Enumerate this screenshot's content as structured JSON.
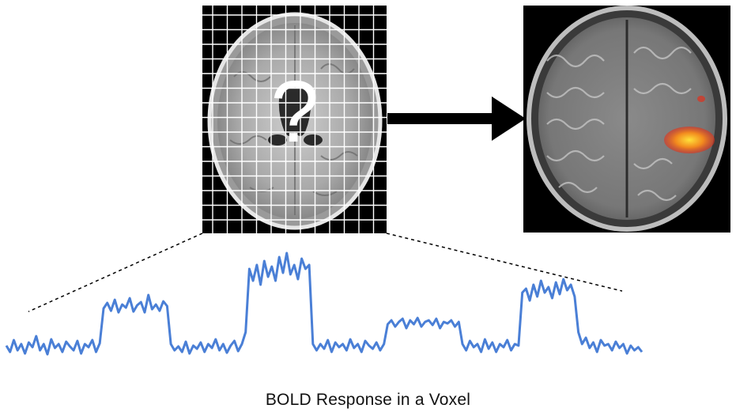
{
  "question_mark": "?",
  "caption": "BOLD Response in a Voxel",
  "colors": {
    "trace": "#4a7fd6",
    "activation_core": "#ffe13a",
    "activation_edge": "#e0301c",
    "grid_lines": "#ffffff"
  },
  "icons": [
    "grid-mri-image",
    "activation-mri-image",
    "right-arrow-icon"
  ],
  "bold_series": [
    0.28,
    0.2,
    0.35,
    0.22,
    0.3,
    0.18,
    0.32,
    0.26,
    0.4,
    0.22,
    0.3,
    0.17,
    0.36,
    0.25,
    0.3,
    0.2,
    0.33,
    0.27,
    0.22,
    0.34,
    0.18,
    0.3,
    0.26,
    0.35,
    0.2,
    0.31,
    0.75,
    0.82,
    0.72,
    0.86,
    0.7,
    0.8,
    0.76,
    0.88,
    0.71,
    0.79,
    0.83,
    0.7,
    0.92,
    0.74,
    0.8,
    0.72,
    0.84,
    0.78,
    0.3,
    0.22,
    0.27,
    0.2,
    0.33,
    0.18,
    0.28,
    0.24,
    0.32,
    0.2,
    0.3,
    0.25,
    0.36,
    0.22,
    0.3,
    0.19,
    0.28,
    0.34,
    0.21,
    0.3,
    0.45,
    1.25,
    1.1,
    1.3,
    1.05,
    1.35,
    1.15,
    1.28,
    1.1,
    1.4,
    1.2,
    1.45,
    1.18,
    1.3,
    1.12,
    1.38,
    1.25,
    1.3,
    0.3,
    0.22,
    0.3,
    0.24,
    0.35,
    0.2,
    0.32,
    0.26,
    0.3,
    0.22,
    0.36,
    0.25,
    0.3,
    0.2,
    0.34,
    0.28,
    0.24,
    0.32,
    0.22,
    0.3,
    0.55,
    0.6,
    0.52,
    0.58,
    0.62,
    0.5,
    0.6,
    0.55,
    0.63,
    0.52,
    0.58,
    0.6,
    0.54,
    0.62,
    0.5,
    0.58,
    0.56,
    0.6,
    0.52,
    0.58,
    0.3,
    0.22,
    0.34,
    0.26,
    0.3,
    0.2,
    0.36,
    0.24,
    0.32,
    0.2,
    0.3,
    0.26,
    0.35,
    0.22,
    0.3,
    0.28,
    0.95,
    1.0,
    0.85,
    1.05,
    0.9,
    1.1,
    0.95,
    1.02,
    0.88,
    1.08,
    0.93,
    1.12,
    0.98,
    1.05,
    0.9,
    0.45,
    0.3,
    0.38,
    0.25,
    0.32,
    0.2,
    0.35,
    0.28,
    0.3,
    0.22,
    0.33,
    0.25,
    0.3,
    0.18,
    0.28,
    0.22,
    0.26,
    0.2
  ]
}
